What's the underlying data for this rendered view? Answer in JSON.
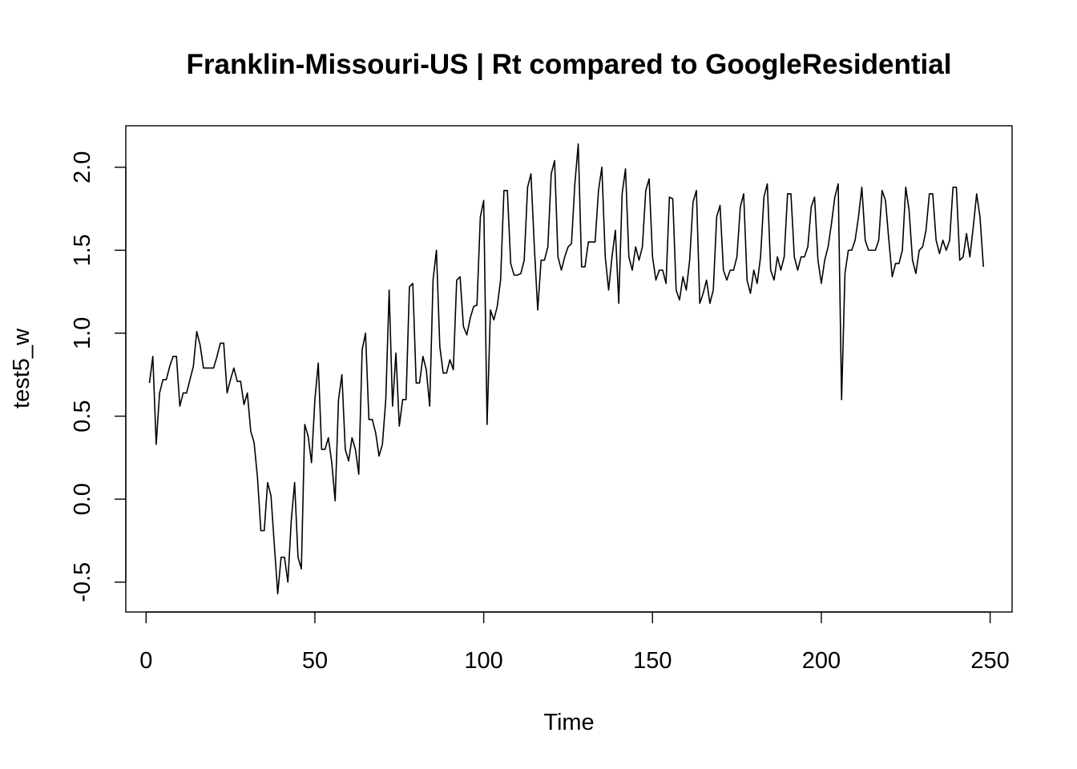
{
  "chart_data": {
    "type": "line",
    "title": "Franklin-Missouri-US | Rt compared to GoogleResidential",
    "xlabel": "Time",
    "ylabel": "test5_w",
    "xlim": [
      -6,
      256.5
    ],
    "ylim": [
      -0.68,
      2.25
    ],
    "x_ticks": [
      0,
      50,
      100,
      150,
      200,
      250
    ],
    "x_tick_labels": [
      "0",
      "50",
      "100",
      "150",
      "200",
      "250"
    ],
    "y_ticks": [
      -0.5,
      0.0,
      0.5,
      1.0,
      1.5,
      2.0
    ],
    "y_tick_labels": [
      "-0.5",
      "0.0",
      "0.5",
      "1.0",
      "1.5",
      "2.0"
    ],
    "grid": false,
    "legend": "none",
    "line_color": "#000000",
    "series": [
      {
        "x_start": 1,
        "values": [
          0.7,
          0.86,
          0.33,
          0.64,
          0.72,
          0.72,
          0.8,
          0.86,
          0.86,
          0.56,
          0.64,
          0.64,
          0.72,
          0.8,
          1.01,
          0.93,
          0.79,
          0.79,
          0.79,
          0.79,
          0.86,
          0.94,
          0.94,
          0.64,
          0.72,
          0.79,
          0.71,
          0.71,
          0.57,
          0.64,
          0.41,
          0.34,
          0.13,
          -0.19,
          -0.19,
          0.1,
          0.02,
          -0.28,
          -0.57,
          -0.35,
          -0.35,
          -0.5,
          -0.13,
          0.1,
          -0.35,
          -0.42,
          0.45,
          0.38,
          0.22,
          0.6,
          0.82,
          0.3,
          0.3,
          0.37,
          0.22,
          -0.01,
          0.6,
          0.75,
          0.3,
          0.23,
          0.37,
          0.3,
          0.15,
          0.9,
          1.0,
          0.48,
          0.48,
          0.4,
          0.26,
          0.33,
          0.6,
          1.26,
          0.56,
          0.88,
          0.44,
          0.6,
          0.6,
          1.28,
          1.3,
          0.7,
          0.7,
          0.86,
          0.78,
          0.56,
          1.32,
          1.5,
          0.92,
          0.76,
          0.76,
          0.84,
          0.78,
          1.32,
          1.34,
          1.04,
          0.99,
          1.09,
          1.16,
          1.17,
          1.7,
          1.8,
          0.45,
          1.14,
          1.08,
          1.16,
          1.32,
          1.86,
          1.86,
          1.42,
          1.35,
          1.35,
          1.36,
          1.44,
          1.88,
          1.96,
          1.52,
          1.14,
          1.44,
          1.44,
          1.52,
          1.96,
          2.04,
          1.46,
          1.38,
          1.46,
          1.52,
          1.54,
          1.9,
          2.14,
          1.4,
          1.4,
          1.55,
          1.55,
          1.55,
          1.86,
          2.0,
          1.46,
          1.26,
          1.46,
          1.62,
          1.18,
          1.84,
          1.99,
          1.46,
          1.38,
          1.52,
          1.44,
          1.52,
          1.86,
          1.93,
          1.46,
          1.32,
          1.38,
          1.38,
          1.3,
          1.82,
          1.81,
          1.26,
          1.2,
          1.34,
          1.26,
          1.44,
          1.79,
          1.86,
          1.18,
          1.24,
          1.32,
          1.18,
          1.26,
          1.7,
          1.77,
          1.38,
          1.32,
          1.38,
          1.38,
          1.46,
          1.76,
          1.84,
          1.32,
          1.24,
          1.38,
          1.3,
          1.46,
          1.82,
          1.9,
          1.38,
          1.32,
          1.46,
          1.38,
          1.46,
          1.84,
          1.84,
          1.46,
          1.38,
          1.46,
          1.46,
          1.52,
          1.76,
          1.82,
          1.44,
          1.3,
          1.44,
          1.52,
          1.66,
          1.82,
          1.9,
          0.6,
          1.36,
          1.5,
          1.5,
          1.56,
          1.7,
          1.88,
          1.56,
          1.5,
          1.5,
          1.5,
          1.56,
          1.86,
          1.8,
          1.56,
          1.34,
          1.42,
          1.42,
          1.5,
          1.88,
          1.74,
          1.44,
          1.36,
          1.5,
          1.52,
          1.62,
          1.84,
          1.84,
          1.56,
          1.48,
          1.56,
          1.5,
          1.56,
          1.88,
          1.88,
          1.44,
          1.46,
          1.6,
          1.46,
          1.64,
          1.84,
          1.7,
          1.4
        ]
      }
    ]
  }
}
